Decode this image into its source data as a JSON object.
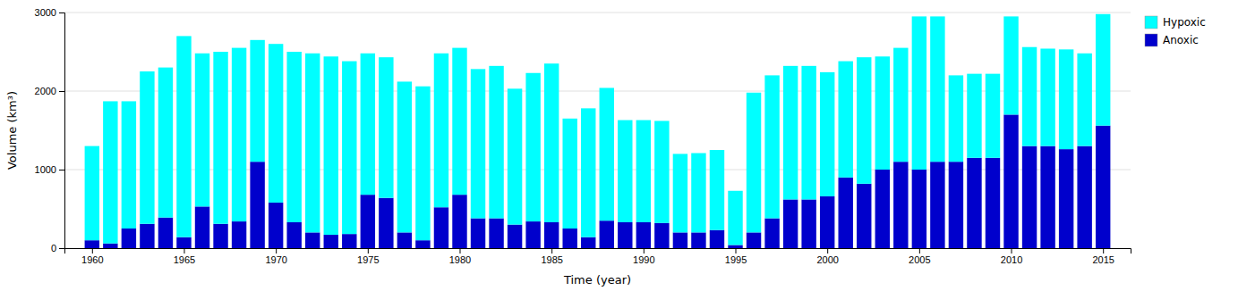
{
  "chart_data": {
    "type": "bar",
    "stacked": true,
    "xlabel": "Time (year)",
    "ylabel": "Volume (km³)",
    "x": [
      1960,
      1961,
      1962,
      1963,
      1964,
      1965,
      1966,
      1967,
      1968,
      1969,
      1970,
      1971,
      1972,
      1973,
      1974,
      1975,
      1976,
      1977,
      1978,
      1979,
      1980,
      1981,
      1982,
      1983,
      1984,
      1985,
      1986,
      1987,
      1988,
      1989,
      1990,
      1991,
      1992,
      1993,
      1994,
      1995,
      1996,
      1997,
      1998,
      1999,
      2000,
      2001,
      2002,
      2003,
      2004,
      2005,
      2006,
      2007,
      2008,
      2009,
      2010,
      2011,
      2012,
      2013,
      2014,
      2015
    ],
    "series": [
      {
        "name": "Anoxic",
        "color": "#0000CC",
        "values": [
          100,
          60,
          250,
          310,
          390,
          140,
          530,
          310,
          340,
          1100,
          580,
          330,
          200,
          170,
          180,
          680,
          640,
          200,
          100,
          520,
          680,
          380,
          380,
          300,
          340,
          330,
          250,
          140,
          350,
          330,
          330,
          320,
          200,
          200,
          230,
          40,
          200,
          380,
          620,
          620,
          660,
          900,
          820,
          1000,
          1100,
          1000,
          1100,
          1100,
          1150,
          1150,
          1700,
          1300,
          1300,
          1260,
          1300,
          1560
        ]
      },
      {
        "name": "Hypoxic",
        "color": "#00FFFF",
        "values": [
          1200,
          1810,
          1620,
          1940,
          1910,
          2560,
          1950,
          2190,
          2210,
          1550,
          2020,
          2170,
          2280,
          2270,
          2200,
          1800,
          1790,
          1920,
          1960,
          1960,
          1870,
          1900,
          1940,
          1730,
          1890,
          2020,
          1400,
          1640,
          1690,
          1300,
          1300,
          1300,
          1000,
          1010,
          1020,
          690,
          1780,
          1820,
          1700,
          1700,
          1580,
          1480,
          1610,
          1440,
          1450,
          1950,
          1850,
          1100,
          1070,
          1070,
          1250,
          1260,
          1240,
          1270,
          1180,
          1420
        ]
      }
    ],
    "xlim": [
      1958.5,
      2016.5
    ],
    "xticks": [
      1960,
      1965,
      1970,
      1975,
      1980,
      1985,
      1990,
      1995,
      2000,
      2005,
      2010,
      2015
    ],
    "ylim": [
      0,
      3000
    ],
    "yticks": [
      0,
      1000,
      2000,
      3000
    ],
    "grid": true,
    "legend": "upper right"
  }
}
